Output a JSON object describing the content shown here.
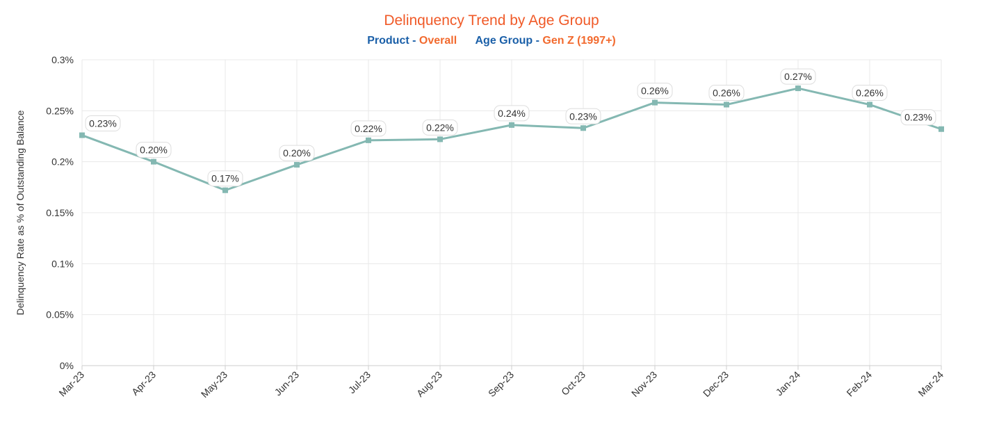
{
  "chart_data": {
    "type": "line",
    "title": "Delinquency Trend by Age Group",
    "subtitle": {
      "product_label": "Product - ",
      "product_value": "Overall",
      "age_label": "Age Group - ",
      "age_value": "Gen Z (1997+)"
    },
    "xlabel": "",
    "ylabel": "Delinquency Rate as % of Outstanding Balance",
    "ylim": [
      0,
      0.3
    ],
    "yticks": [
      "0%",
      "0.05%",
      "0.1%",
      "0.15%",
      "0.2%",
      "0.25%",
      "0.3%"
    ],
    "ytick_values": [
      0,
      0.05,
      0.1,
      0.15,
      0.2,
      0.25,
      0.3
    ],
    "categories": [
      "Mar-23",
      "Apr-23",
      "May-23",
      "Jun-23",
      "Jul-23",
      "Aug-23",
      "Sep-23",
      "Oct-23",
      "Nov-23",
      "Dec-23",
      "Jan-24",
      "Feb-24",
      "Mar-24"
    ],
    "values": [
      0.226,
      0.2,
      0.172,
      0.197,
      0.221,
      0.222,
      0.236,
      0.233,
      0.258,
      0.256,
      0.272,
      0.256,
      0.232
    ],
    "data_labels": [
      "0.23%",
      "0.20%",
      "0.17%",
      "0.20%",
      "0.22%",
      "0.22%",
      "0.24%",
      "0.23%",
      "0.26%",
      "0.26%",
      "0.27%",
      "0.26%",
      "0.23%"
    ],
    "grid": true,
    "legend": "none",
    "colors": {
      "line": "#84b8b2",
      "title": "#f05a28",
      "subtitle_key": "#1a5fa8",
      "subtitle_value": "#f26a2e"
    }
  }
}
